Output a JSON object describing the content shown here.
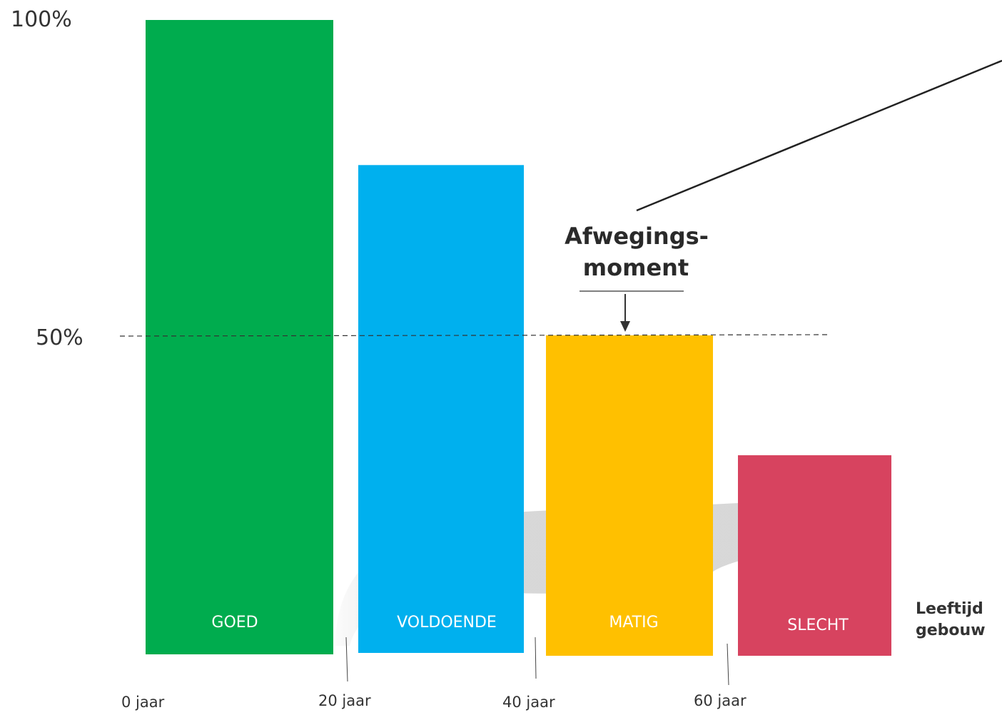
{
  "chart_data": {
    "type": "bar",
    "categories": [
      "GOED",
      "VOLDOENDE",
      "MATIG",
      "SLECHT"
    ],
    "values": [
      100,
      77,
      50,
      31
    ],
    "colors": [
      "#00ac4e",
      "#00b0ee",
      "#ffc000",
      "#d7435f"
    ],
    "ylim": [
      0,
      100
    ],
    "y_ticks": [
      "100%",
      "50%"
    ],
    "x_ticks": [
      "0 jaar",
      "20 jaar",
      "40 jaar",
      "60 jaar"
    ],
    "reference_line": 50,
    "annotation_line1": "Afwegings-",
    "annotation_line2": "moment",
    "xlabel_line1": "Leeftijd",
    "xlabel_line2": "gebouw",
    "grid": false,
    "legend": "none"
  }
}
